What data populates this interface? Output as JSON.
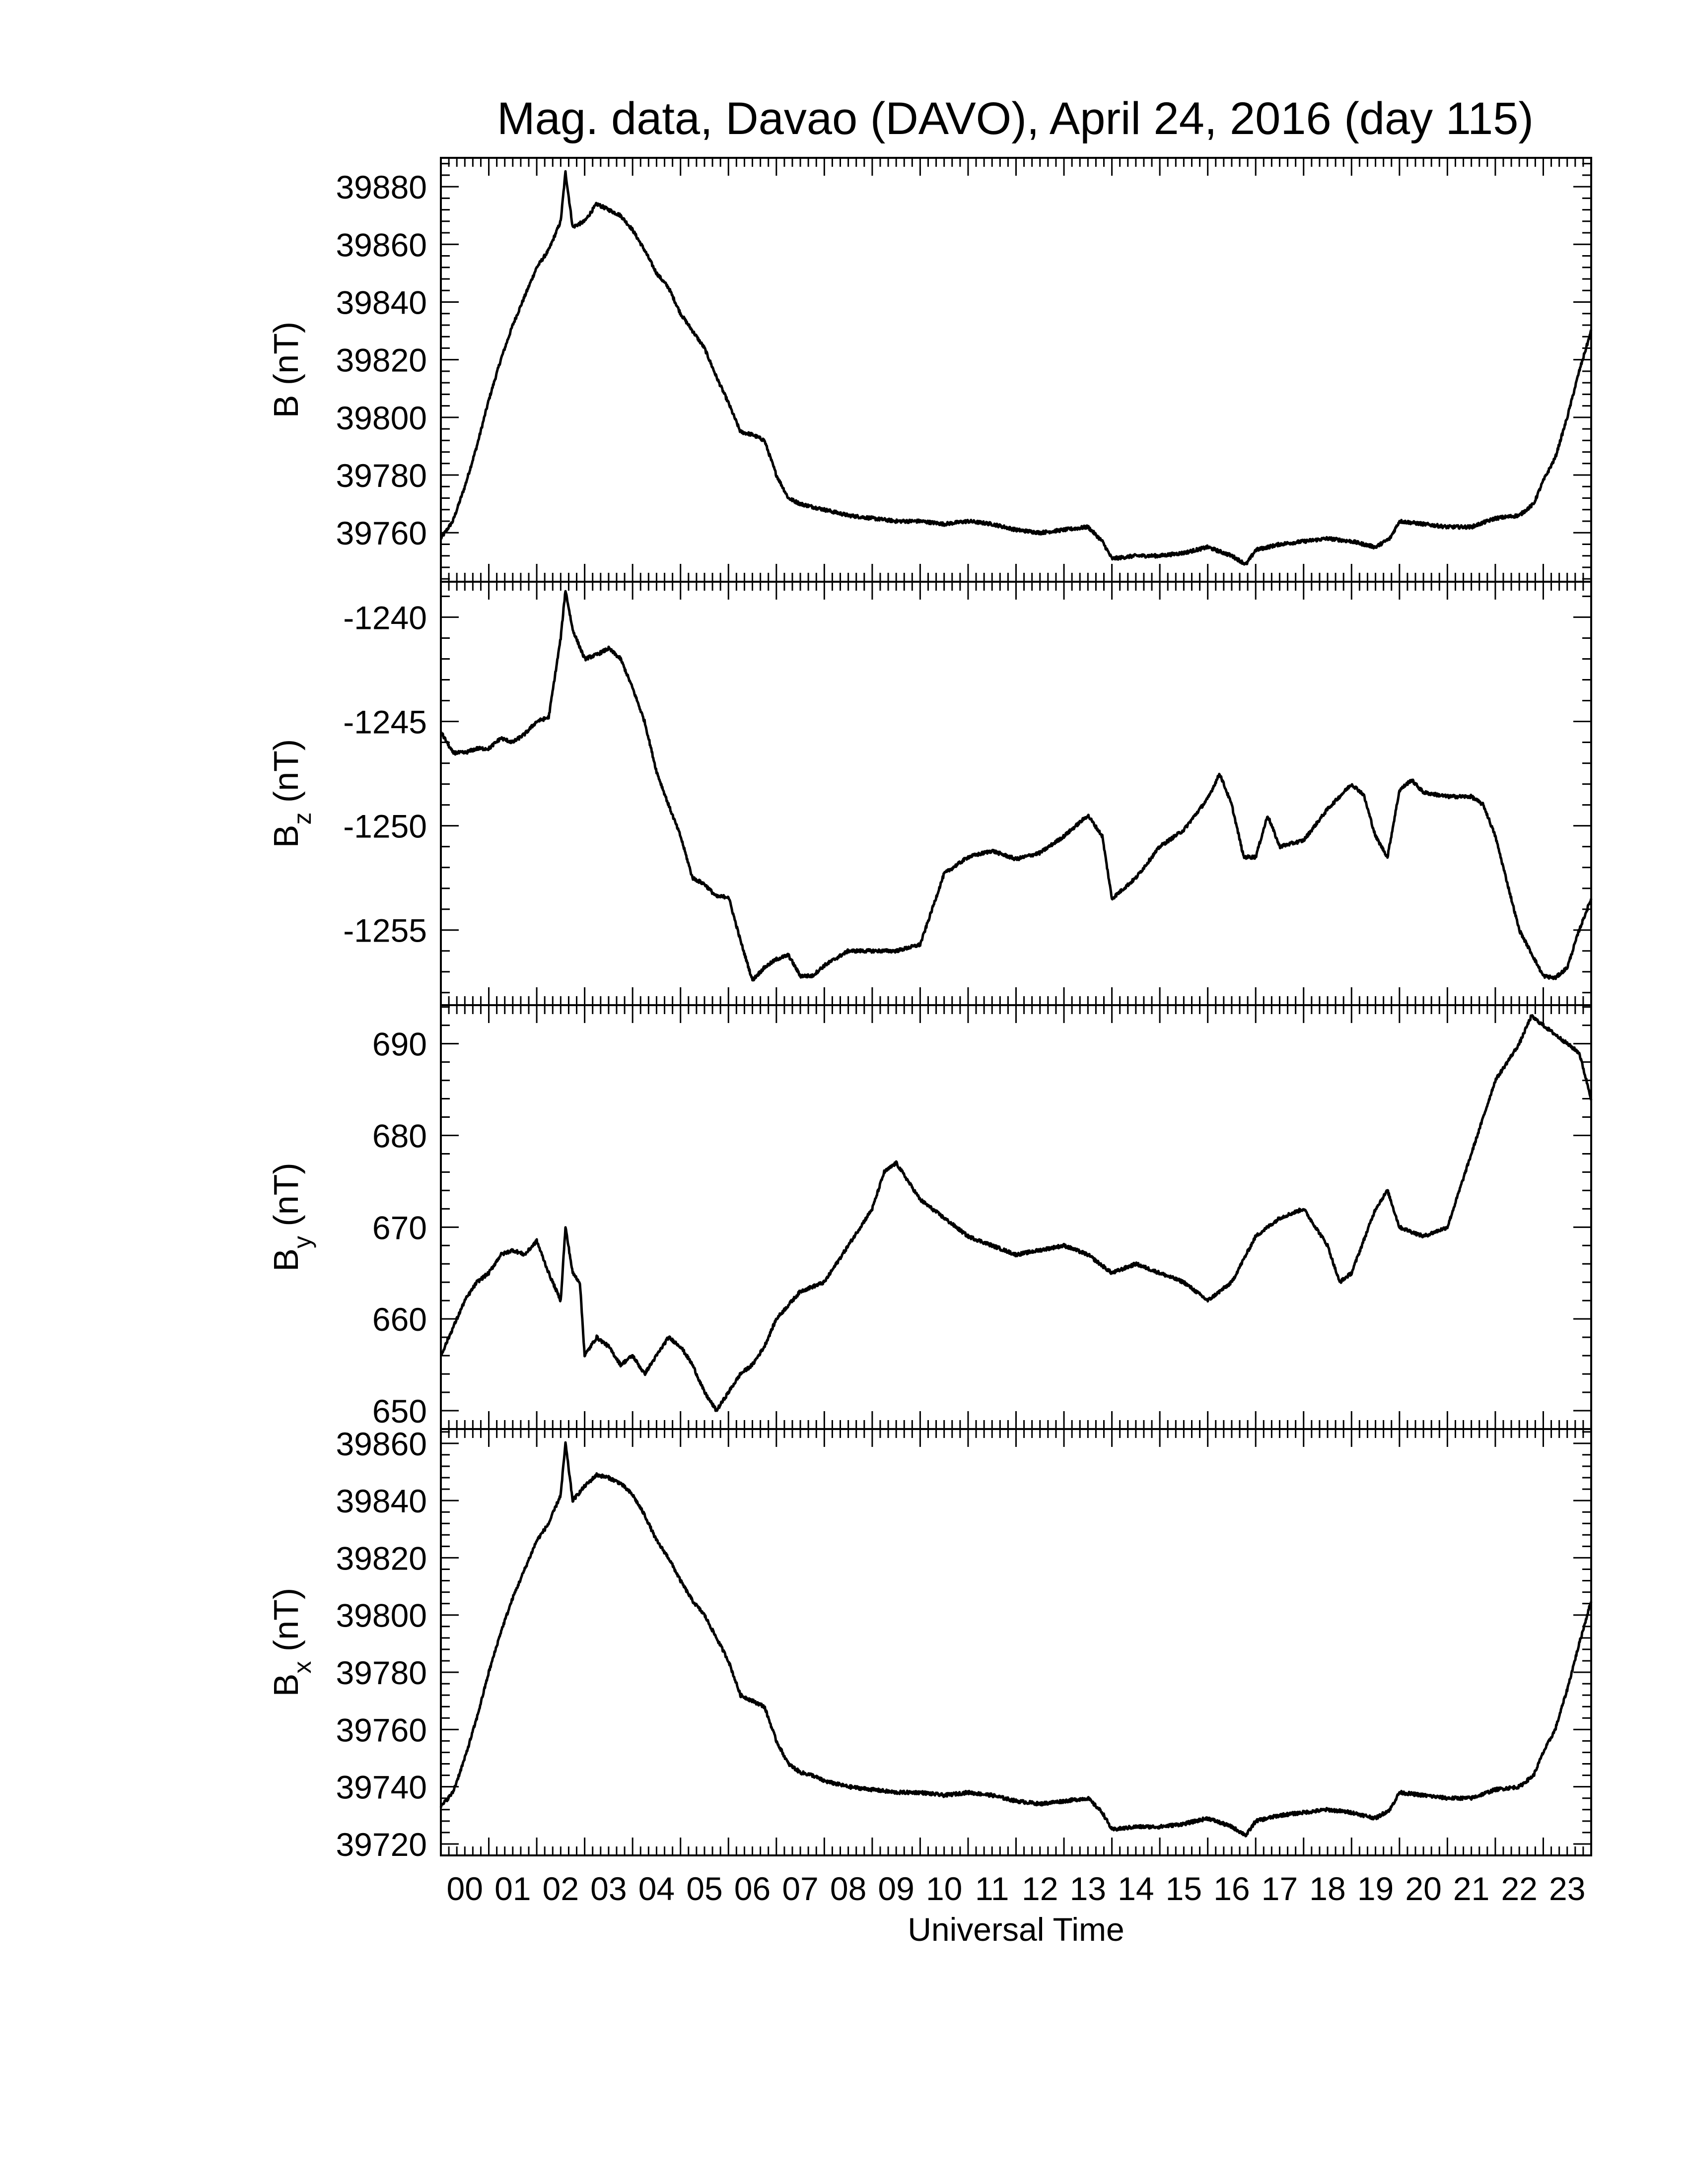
{
  "title": "Mag. data, Davao (DAVO), April 24, 2016 (day 115)",
  "colors": {
    "line": "#000000",
    "background": "#ffffff"
  },
  "chart_data": [
    {
      "type": "line",
      "ylabel": "B (nT)",
      "ylabel_main": "B",
      "ylabel_sub": "",
      "ylabel_unit": " (nT)",
      "ylim": [
        39743,
        39890
      ],
      "yticks": [
        39760,
        39780,
        39800,
        39820,
        39840,
        39860,
        39880
      ],
      "ytick_labels": [
        "39760",
        "39780",
        "39800",
        "39820",
        "39840",
        "39860",
        "39880"
      ],
      "x": [
        0,
        0.25,
        0.5,
        0.75,
        1,
        1.25,
        1.5,
        1.75,
        2,
        2.25,
        2.5,
        2.6,
        2.75,
        3,
        3.25,
        3.5,
        3.75,
        4,
        4.25,
        4.5,
        4.75,
        5,
        5.25,
        5.5,
        5.75,
        6,
        6.25,
        6.5,
        6.75,
        7,
        7.25,
        7.5,
        7.75,
        8,
        8.5,
        9,
        9.5,
        10,
        10.5,
        11,
        11.5,
        12,
        12.5,
        13,
        13.5,
        13.8,
        14,
        14.5,
        15,
        15.5,
        16,
        16.5,
        16.8,
        17,
        17.5,
        18,
        18.5,
        19,
        19.5,
        19.8,
        20,
        20.5,
        21,
        21.5,
        22,
        22.5,
        22.8,
        23,
        23.25,
        23.5,
        23.75,
        24
      ],
      "y": [
        39758,
        39764,
        39776,
        39790,
        39806,
        39820,
        39832,
        39842,
        39852,
        39858,
        39868,
        39885,
        39866,
        39868,
        39874,
        39872,
        39870,
        39865,
        39858,
        39850,
        39845,
        39836,
        39830,
        39824,
        39814,
        39805,
        39795,
        39794,
        39792,
        39780,
        39772,
        39770,
        39769,
        39768,
        39766,
        39765,
        39764,
        39764,
        39763,
        39764,
        39763,
        39761,
        39760,
        39761,
        39762,
        39757,
        39751,
        39752,
        39752,
        39753,
        39755,
        39752,
        39749,
        39754,
        39756,
        39757,
        39758,
        39757,
        39755,
        39758,
        39764,
        39763,
        39762,
        39762,
        39765,
        39766,
        39770,
        39778,
        39786,
        39800,
        39816,
        39830
      ]
    },
    {
      "type": "line",
      "ylabel": "Bz (nT)",
      "ylabel_main": "B",
      "ylabel_sub": "z",
      "ylabel_unit": " (nT)",
      "ylim": [
        -1258.6,
        -1238.3
      ],
      "yticks": [
        -1255,
        -1250,
        -1245,
        -1240
      ],
      "ytick_labels": [
        "-1255",
        "-1250",
        "-1245",
        "-1240"
      ],
      "x": [
        0,
        0.25,
        0.5,
        0.75,
        1,
        1.25,
        1.5,
        1.75,
        2,
        2.25,
        2.5,
        2.6,
        2.75,
        3,
        3.25,
        3.5,
        3.75,
        4,
        4.25,
        4.5,
        4.75,
        5,
        5.25,
        5.5,
        5.75,
        6,
        6.25,
        6.5,
        6.75,
        7,
        7.25,
        7.5,
        7.75,
        8,
        8.5,
        9,
        9.5,
        10,
        10.25,
        10.5,
        11,
        11.5,
        12,
        12.5,
        13,
        13.5,
        13.8,
        14,
        14.5,
        15,
        15.5,
        16,
        16.25,
        16.5,
        16.75,
        17,
        17.25,
        17.5,
        18,
        18.5,
        19,
        19.25,
        19.5,
        19.75,
        20,
        20.25,
        20.5,
        21,
        21.5,
        21.75,
        22,
        22.5,
        23,
        23.25,
        23.5,
        23.75,
        24
      ],
      "y": [
        -1245.5,
        -1246.5,
        -1246.5,
        -1246.3,
        -1246.3,
        -1245.8,
        -1246,
        -1245.6,
        -1245,
        -1244.8,
        -1241,
        -1238.7,
        -1240.6,
        -1242,
        -1241.8,
        -1241.5,
        -1242,
        -1243.4,
        -1245,
        -1247.4,
        -1249,
        -1250.5,
        -1252.5,
        -1252.8,
        -1253.4,
        -1253.4,
        -1255.5,
        -1257.4,
        -1256.8,
        -1256.4,
        -1256.2,
        -1257.2,
        -1257.2,
        -1256.7,
        -1256,
        -1256,
        -1256,
        -1255.7,
        -1254,
        -1252.3,
        -1251.5,
        -1251.2,
        -1251.6,
        -1251.3,
        -1250.5,
        -1249.5,
        -1250.5,
        -1253.5,
        -1252.5,
        -1251,
        -1250.2,
        -1248.7,
        -1247.5,
        -1249,
        -1251.5,
        -1251.5,
        -1249.5,
        -1251,
        -1250.7,
        -1249.2,
        -1248,
        -1248.5,
        -1250.5,
        -1251.5,
        -1248.3,
        -1247.8,
        -1248.4,
        -1248.6,
        -1248.6,
        -1249,
        -1250.5,
        -1255,
        -1257.2,
        -1257.3,
        -1256.8,
        -1255,
        -1253.5
      ]
    },
    {
      "type": "line",
      "ylabel": "By (nT)",
      "ylabel_main": "B",
      "ylabel_sub": "y",
      "ylabel_unit": " (nT)",
      "ylim": [
        648,
        694.2
      ],
      "yticks": [
        650,
        660,
        670,
        680,
        690
      ],
      "ytick_labels": [
        "650",
        "660",
        "670",
        "680",
        "690"
      ],
      "x": [
        0,
        0.25,
        0.5,
        0.75,
        1,
        1.25,
        1.5,
        1.75,
        2,
        2.25,
        2.5,
        2.6,
        2.75,
        2.9,
        3,
        3.25,
        3.5,
        3.75,
        4,
        4.25,
        4.5,
        4.75,
        5,
        5.25,
        5.5,
        5.75,
        6,
        6.25,
        6.5,
        6.75,
        7,
        7.5,
        8,
        8.5,
        9,
        9.25,
        9.5,
        9.75,
        10,
        10.5,
        11,
        11.5,
        12,
        12.5,
        13,
        13.5,
        14,
        14.5,
        15,
        15.5,
        16,
        16.5,
        17,
        17.25,
        17.5,
        18,
        18.5,
        18.75,
        19,
        19.5,
        19.75,
        20,
        20.5,
        21,
        21.5,
        22,
        22.5,
        22.75,
        23,
        23.25,
        23.5,
        23.75,
        24
      ],
      "y": [
        656,
        659,
        662,
        664,
        665,
        667,
        667.5,
        667,
        668.5,
        665,
        662,
        670,
        665,
        664,
        656,
        658,
        657,
        655,
        656,
        654,
        656,
        658,
        657,
        655,
        652,
        650,
        652,
        654,
        655,
        657,
        660,
        663,
        664,
        668,
        672,
        676,
        677,
        675,
        673,
        671,
        669,
        668,
        667,
        667.5,
        668,
        667,
        665,
        666,
        665,
        664,
        662,
        664,
        669,
        670,
        671,
        672,
        668,
        664,
        665,
        672,
        674,
        670,
        669,
        670,
        678,
        686,
        690,
        693,
        692,
        691,
        690,
        689,
        684
      ]
    },
    {
      "type": "line",
      "ylabel": "Bx (nT)",
      "ylabel_main": "B",
      "ylabel_sub": "x",
      "ylabel_unit": " (nT)",
      "ylim": [
        39716,
        39865
      ],
      "yticks": [
        39720,
        39740,
        39760,
        39780,
        39800,
        39820,
        39840,
        39860
      ],
      "ytick_labels": [
        "39720",
        "39740",
        "39760",
        "39780",
        "39800",
        "39820",
        "39840",
        "39860"
      ],
      "x": [
        0,
        0.25,
        0.5,
        0.75,
        1,
        1.25,
        1.5,
        1.75,
        2,
        2.25,
        2.5,
        2.6,
        2.75,
        3,
        3.25,
        3.5,
        3.75,
        4,
        4.25,
        4.5,
        4.75,
        5,
        5.25,
        5.5,
        5.75,
        6,
        6.25,
        6.5,
        6.75,
        7,
        7.25,
        7.5,
        7.75,
        8,
        8.5,
        9,
        9.5,
        10,
        10.5,
        11,
        11.5,
        12,
        12.5,
        13,
        13.5,
        13.8,
        14,
        14.5,
        15,
        15.5,
        16,
        16.5,
        16.8,
        17,
        17.5,
        18,
        18.5,
        19,
        19.5,
        19.8,
        20,
        20.5,
        21,
        21.5,
        22,
        22.5,
        22.8,
        23,
        23.25,
        23.5,
        23.75,
        24
      ],
      "y": [
        39733,
        39738,
        39750,
        39764,
        39780,
        39794,
        39806,
        39816,
        39826,
        39832,
        39842,
        39860,
        39840,
        39845,
        39849,
        39848,
        39846,
        39842,
        39835,
        39826,
        39820,
        39812,
        39805,
        39800,
        39792,
        39784,
        39772,
        39770,
        39768,
        39756,
        39748,
        39745,
        39744,
        39742,
        39740,
        39739,
        39738,
        39738,
        39737,
        39738,
        39737,
        39735,
        39734,
        39735,
        39736,
        39731,
        39725,
        39726,
        39726,
        39727,
        39729,
        39726,
        39723,
        39728,
        39730,
        39731,
        39732,
        39731,
        39729,
        39732,
        39738,
        39737,
        39736,
        39736,
        39739,
        39740,
        39744,
        39752,
        39760,
        39774,
        39790,
        39805
      ]
    }
  ],
  "x_axis": {
    "label": "Universal Time",
    "tick_labels": [
      "00",
      "01",
      "02",
      "03",
      "04",
      "05",
      "06",
      "07",
      "08",
      "09",
      "10",
      "11",
      "12",
      "13",
      "14",
      "15",
      "16",
      "17",
      "18",
      "19",
      "20",
      "21",
      "22",
      "23"
    ]
  }
}
